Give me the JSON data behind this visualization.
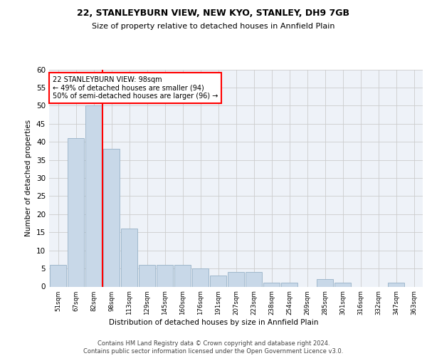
{
  "title1": "22, STANLEYBURN VIEW, NEW KYO, STANLEY, DH9 7GB",
  "title2": "Size of property relative to detached houses in Annfield Plain",
  "xlabel": "Distribution of detached houses by size in Annfield Plain",
  "ylabel": "Number of detached properties",
  "footnote": "Contains HM Land Registry data © Crown copyright and database right 2024.\nContains public sector information licensed under the Open Government Licence v3.0.",
  "bar_labels": [
    "51sqm",
    "67sqm",
    "82sqm",
    "98sqm",
    "113sqm",
    "129sqm",
    "145sqm",
    "160sqm",
    "176sqm",
    "191sqm",
    "207sqm",
    "223sqm",
    "238sqm",
    "254sqm",
    "269sqm",
    "285sqm",
    "301sqm",
    "316sqm",
    "332sqm",
    "347sqm",
    "363sqm"
  ],
  "bar_values": [
    6,
    41,
    50,
    38,
    16,
    6,
    6,
    6,
    5,
    3,
    4,
    4,
    1,
    1,
    0,
    2,
    1,
    0,
    0,
    1,
    0
  ],
  "bar_color": "#c8d8e8",
  "bar_edgecolor": "#a0b8cc",
  "vline_color": "red",
  "annotation_text": "22 STANLEYBURN VIEW: 98sqm\n← 49% of detached houses are smaller (94)\n50% of semi-detached houses are larger (96) →",
  "annotation_box_edgecolor": "red",
  "annotation_box_facecolor": "white",
  "ylim": [
    0,
    60
  ],
  "yticks": [
    0,
    5,
    10,
    15,
    20,
    25,
    30,
    35,
    40,
    45,
    50,
    55,
    60
  ],
  "grid_color": "#cccccc",
  "bg_color": "#eef2f8"
}
